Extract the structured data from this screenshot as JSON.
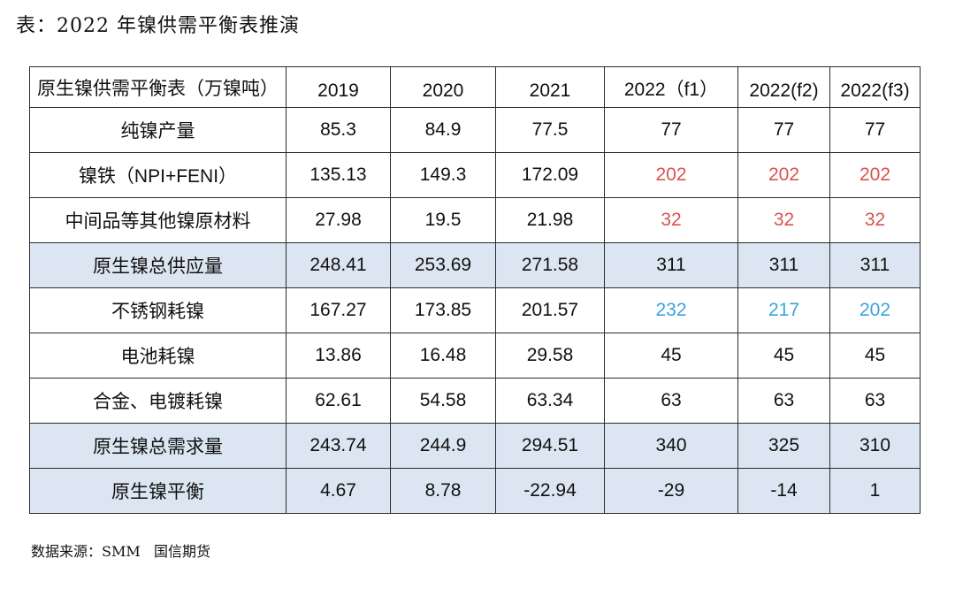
{
  "source": "数据来源：SMM   国信期货",
  "colors": {
    "highlight_row": "#dce6f2",
    "border": "#2b2b2b",
    "red_value": "#d9534f",
    "blue_value": "#3ba3dc"
  },
  "chart_data": {
    "type": "table",
    "title": "表：2022 年镍供需平衡表推演",
    "columns": [
      "原生镍供需平衡表（万镍吨）",
      "2019",
      "2020",
      "2021",
      "2022（f1）",
      "2022(f2)",
      "2022(f3)"
    ],
    "rows": [
      {
        "label": "纯镍产量",
        "values": [
          85.3,
          84.9,
          77.5,
          77,
          77,
          77
        ],
        "highlight": false,
        "cell_colors": [
          null,
          null,
          null,
          null,
          null,
          null
        ]
      },
      {
        "label": "镍铁（NPI+FENI）",
        "values": [
          135.13,
          149.3,
          172.09,
          202,
          202,
          202
        ],
        "highlight": false,
        "cell_colors": [
          null,
          null,
          null,
          "#d9534f",
          "#d9534f",
          "#d9534f"
        ]
      },
      {
        "label": "中间品等其他镍原材料",
        "values": [
          27.98,
          19.5,
          21.98,
          32,
          32,
          32
        ],
        "highlight": false,
        "cell_colors": [
          null,
          null,
          null,
          "#d9534f",
          "#d9534f",
          "#d9534f"
        ]
      },
      {
        "label": "原生镍总供应量",
        "values": [
          248.41,
          253.69,
          271.58,
          311,
          311,
          311
        ],
        "highlight": true,
        "cell_colors": [
          null,
          null,
          null,
          null,
          null,
          null
        ]
      },
      {
        "label": "不锈钢耗镍",
        "values": [
          167.27,
          173.85,
          201.57,
          232,
          217,
          202
        ],
        "highlight": false,
        "cell_colors": [
          null,
          null,
          null,
          "#3ba3dc",
          "#3ba3dc",
          "#3ba3dc"
        ]
      },
      {
        "label": "电池耗镍",
        "values": [
          13.86,
          16.48,
          29.58,
          45,
          45,
          45
        ],
        "highlight": false,
        "cell_colors": [
          null,
          null,
          null,
          null,
          null,
          null
        ]
      },
      {
        "label": "合金、电镀耗镍",
        "values": [
          62.61,
          54.58,
          63.34,
          63,
          63,
          63
        ],
        "highlight": false,
        "cell_colors": [
          null,
          null,
          null,
          null,
          null,
          null
        ]
      },
      {
        "label": "原生镍总需求量",
        "values": [
          243.74,
          244.9,
          294.51,
          340,
          325,
          310
        ],
        "highlight": true,
        "cell_colors": [
          null,
          null,
          null,
          null,
          null,
          null
        ]
      },
      {
        "label": "原生镍平衡",
        "values": [
          4.67,
          8.78,
          -22.94,
          -29,
          -14,
          1
        ],
        "highlight": true,
        "cell_colors": [
          null,
          null,
          null,
          null,
          null,
          null
        ]
      }
    ]
  }
}
